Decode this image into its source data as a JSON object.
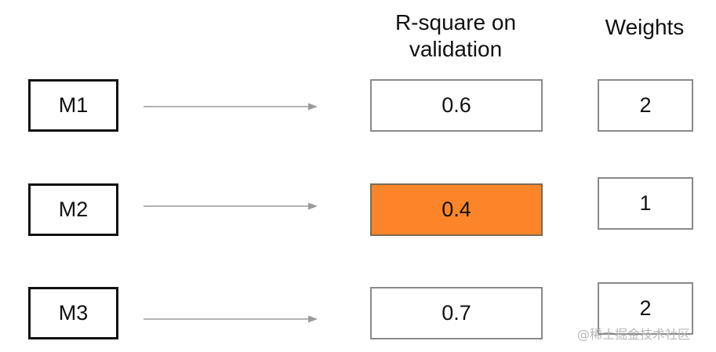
{
  "headers": {
    "rsquare": "R-square on validation",
    "weights": "Weights"
  },
  "rows": [
    {
      "model": "M1",
      "rsquare": "0.6",
      "weight": "2",
      "highlighted": false
    },
    {
      "model": "M2",
      "rsquare": "0.4",
      "weight": "1",
      "highlighted": true
    },
    {
      "model": "M3",
      "rsquare": "0.7",
      "weight": "2",
      "highlighted": false
    }
  ],
  "colors": {
    "highlight_fill": "#FB8528",
    "arrow": "#9a9a9a"
  },
  "watermark": "@稀土掘金技术社区"
}
